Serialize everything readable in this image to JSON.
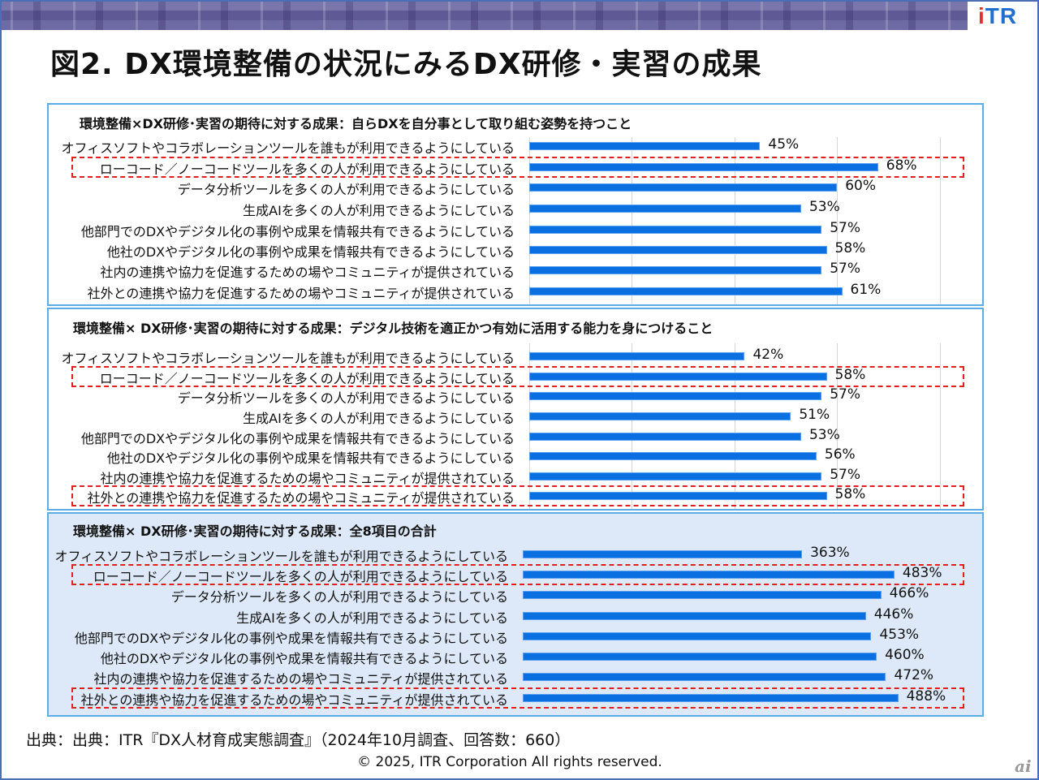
{
  "header": {
    "logo": "ITR",
    "title": "図2.  DX環境整備の状況にみるDX研修・実習の成果"
  },
  "colors": {
    "bar": "#0a6fe0",
    "highlight": "#e02020",
    "panel_border": "#5aaee8",
    "total_bg": "#dde9f8"
  },
  "chart_data": [
    {
      "type": "bar",
      "orientation": "horizontal",
      "title": "環境整備×DX研修･実習の期待に対する成果：自らDXを自分事として取り組む姿勢を持つこと",
      "categories": [
        "オフィスソフトやコラボレーションツールを誰もが利用できるようにしている",
        "ローコード／ノーコードツールを多くの人が利用できるようにしている",
        "データ分析ツールを多くの人が利用できるようにしている",
        "生成AIを多くの人が利用できるようにしている",
        "他部門でのDXやデジタル化の事例や成果を情報共有できるようにしている",
        "他社のDXやデジタル化の事例や成果を情報共有できるようにしている",
        "社内の連携や協力を促進するための場やコミュニティが提供されている",
        "社外との連携や協力を促進するための場やコミュニティが提供されている"
      ],
      "values": [
        45,
        68,
        60,
        53,
        57,
        58,
        57,
        61
      ],
      "labels": [
        "45%",
        "68%",
        "60%",
        "53%",
        "57%",
        "58%",
        "57%",
        "61%"
      ],
      "highlighted": [
        1
      ],
      "xlim": [
        0,
        80
      ],
      "grid": true
    },
    {
      "type": "bar",
      "orientation": "horizontal",
      "title": "環境整備× DX研修･実習の期待に対する成果：デジタル技術を適正かつ有効に活用する能力を身につけること",
      "categories": [
        "オフィスソフトやコラボレーションツールを誰もが利用できるようにしている",
        "ローコード／ノーコードツールを多くの人が利用できるようにしている",
        "データ分析ツールを多くの人が利用できるようにしている",
        "生成AIを多くの人が利用できるようにしている",
        "他部門でのDXやデジタル化の事例や成果を情報共有できるようにしている",
        "他社のDXやデジタル化の事例や成果を情報共有できるようにしている",
        "社内の連携や協力を促進するための場やコミュニティが提供されている",
        "社外との連携や協力を促進するための場やコミュニティが提供されている"
      ],
      "values": [
        42,
        58,
        57,
        51,
        53,
        56,
        57,
        58
      ],
      "labels": [
        "42%",
        "58%",
        "57%",
        "51%",
        "53%",
        "56%",
        "57%",
        "58%"
      ],
      "highlighted": [
        1,
        7
      ],
      "xlim": [
        0,
        80
      ],
      "grid": true
    },
    {
      "type": "bar",
      "orientation": "horizontal",
      "title": "環境整備× DX研修･実習の期待に対する成果：全8項目の合計",
      "categories": [
        "オフィスソフトやコラボレーションツールを誰もが利用できるようにしている",
        "ローコード／ノーコードツールを多くの人が利用できるようにしている",
        "データ分析ツールを多くの人が利用できるようにしている",
        "生成AIを多くの人が利用できるようにしている",
        "他部門でのDXやデジタル化の事例や成果を情報共有できるようにしている",
        "他社のDXやデジタル化の事例や成果を情報共有できるようにしている",
        "社内の連携や協力を促進するための場やコミュニティが提供されている",
        "社外との連携や協力を促進するための場やコミュニティが提供されている"
      ],
      "values": [
        363,
        483,
        466,
        446,
        453,
        460,
        472,
        488
      ],
      "labels": [
        "363%",
        "483%",
        "466%",
        "446%",
        "453%",
        "460%",
        "472%",
        "488%"
      ],
      "highlighted": [
        1,
        7
      ],
      "xlim": [
        0,
        540
      ],
      "grid": false
    }
  ],
  "footer": {
    "source": "出典：出典：ITR『DX人材育成実態調査』（2024年10月調査、回答数：660）",
    "copyright": "© 2025, ITR Corporation  All rights reserved.",
    "watermark": "ai"
  }
}
